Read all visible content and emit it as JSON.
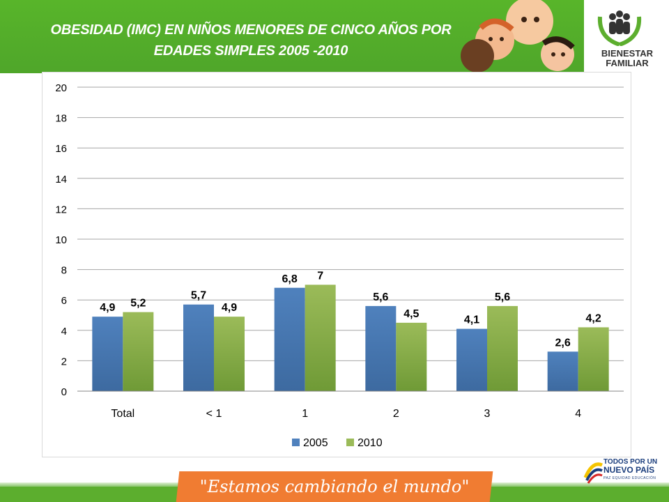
{
  "header": {
    "title_line1": "OBESIDAD (IMC) EN NIÑOS MENORES DE CINCO AÑOS POR",
    "title_line2": "EDADES SIMPLES 2005 -2010",
    "color": "#58b52a"
  },
  "logo": {
    "line1": "BIENESTAR",
    "line2": "FAMILIAR"
  },
  "footer": {
    "slogan": "\"Estamos cambiando el mundo\"",
    "gov_line1": "TODOS POR UN",
    "gov_line2": "NUEVO PAÍS",
    "gov_line3": "PAZ  EQUIDAD  EDUCACIÓN",
    "slogan_color": "#f07c32"
  },
  "chart_data": {
    "type": "bar",
    "categories": [
      "Total",
      "< 1",
      "1",
      "2",
      "3",
      "4"
    ],
    "series": [
      {
        "name": "2005",
        "values": [
          4.9,
          5.7,
          6.8,
          5.6,
          4.1,
          2.6
        ],
        "labels": [
          "4,9",
          "5,7",
          "6,8",
          "5,6",
          "4,1",
          "2,6"
        ],
        "color": "#4f81bd"
      },
      {
        "name": "2010",
        "values": [
          5.2,
          4.9,
          7,
          4.5,
          5.6,
          4.2
        ],
        "labels": [
          "5,2",
          "4,9",
          "7",
          "4,5",
          "5,6",
          "4,2"
        ],
        "color": "#9bbb59"
      }
    ],
    "ylim": [
      0,
      20
    ],
    "yticks": [
      0,
      2,
      4,
      6,
      8,
      10,
      12,
      14,
      16,
      18,
      20
    ],
    "grid": true,
    "legend": "bottom"
  }
}
